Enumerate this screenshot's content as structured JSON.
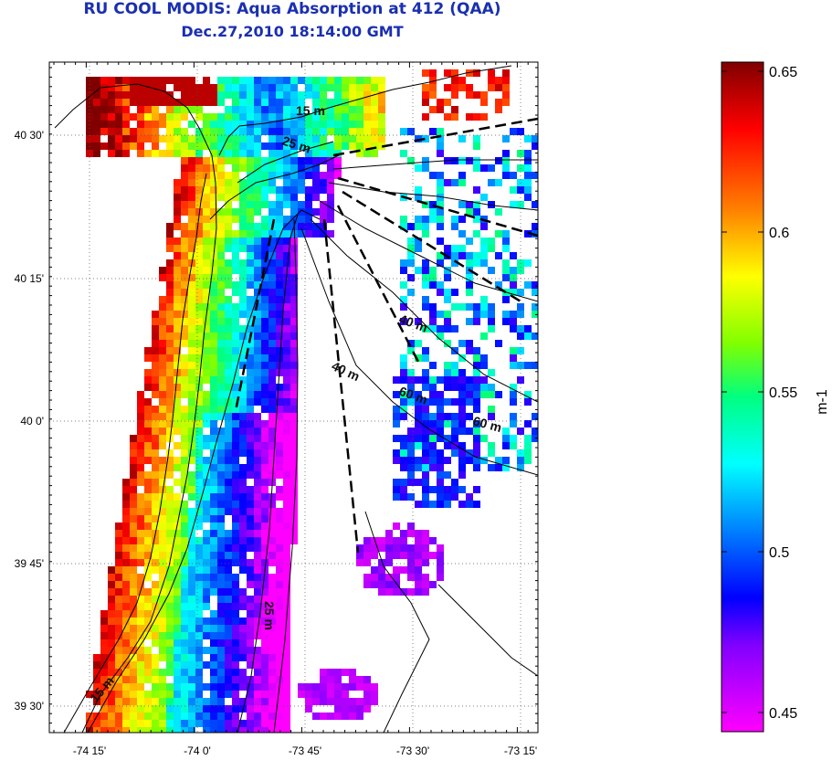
{
  "title": "RU COOL MODIS: Aqua Absorption at 412 (QAA)",
  "subtitle": "Dec.27,2010 18:14:00 GMT",
  "map": {
    "x_ticks": [
      "-74 15'",
      "-74 0'",
      "-73 45'",
      "-73 30'",
      "-73 15'"
    ],
    "y_ticks": [
      "40 30'",
      "40 15'",
      "40 0'",
      "39 45'",
      "39 30'"
    ],
    "isobath_labels": [
      {
        "text": "15 m",
        "rotate": 0
      },
      {
        "text": "25 m",
        "rotate": 18
      },
      {
        "text": "40 m",
        "rotate": 20
      },
      {
        "text": "40 m",
        "rotate": 25
      },
      {
        "text": "60 m",
        "rotate": 20
      },
      {
        "text": "60 m",
        "rotate": 15
      },
      {
        "text": "25 m",
        "rotate": 90
      },
      {
        "text": "15 m",
        "rotate": -50
      }
    ]
  },
  "colorbar": {
    "unit_label": "m-1",
    "ticks": [
      "0.65",
      "0.6",
      "0.55",
      "0.5",
      "0.45"
    ],
    "min": 0.44,
    "max": 0.655,
    "colormap": [
      "#ff00ff",
      "#8000ff",
      "#0000ff",
      "#0080ff",
      "#00ffff",
      "#00ff80",
      "#80ff00",
      "#ffff00",
      "#ff8000",
      "#ff0000",
      "#800000"
    ]
  }
}
